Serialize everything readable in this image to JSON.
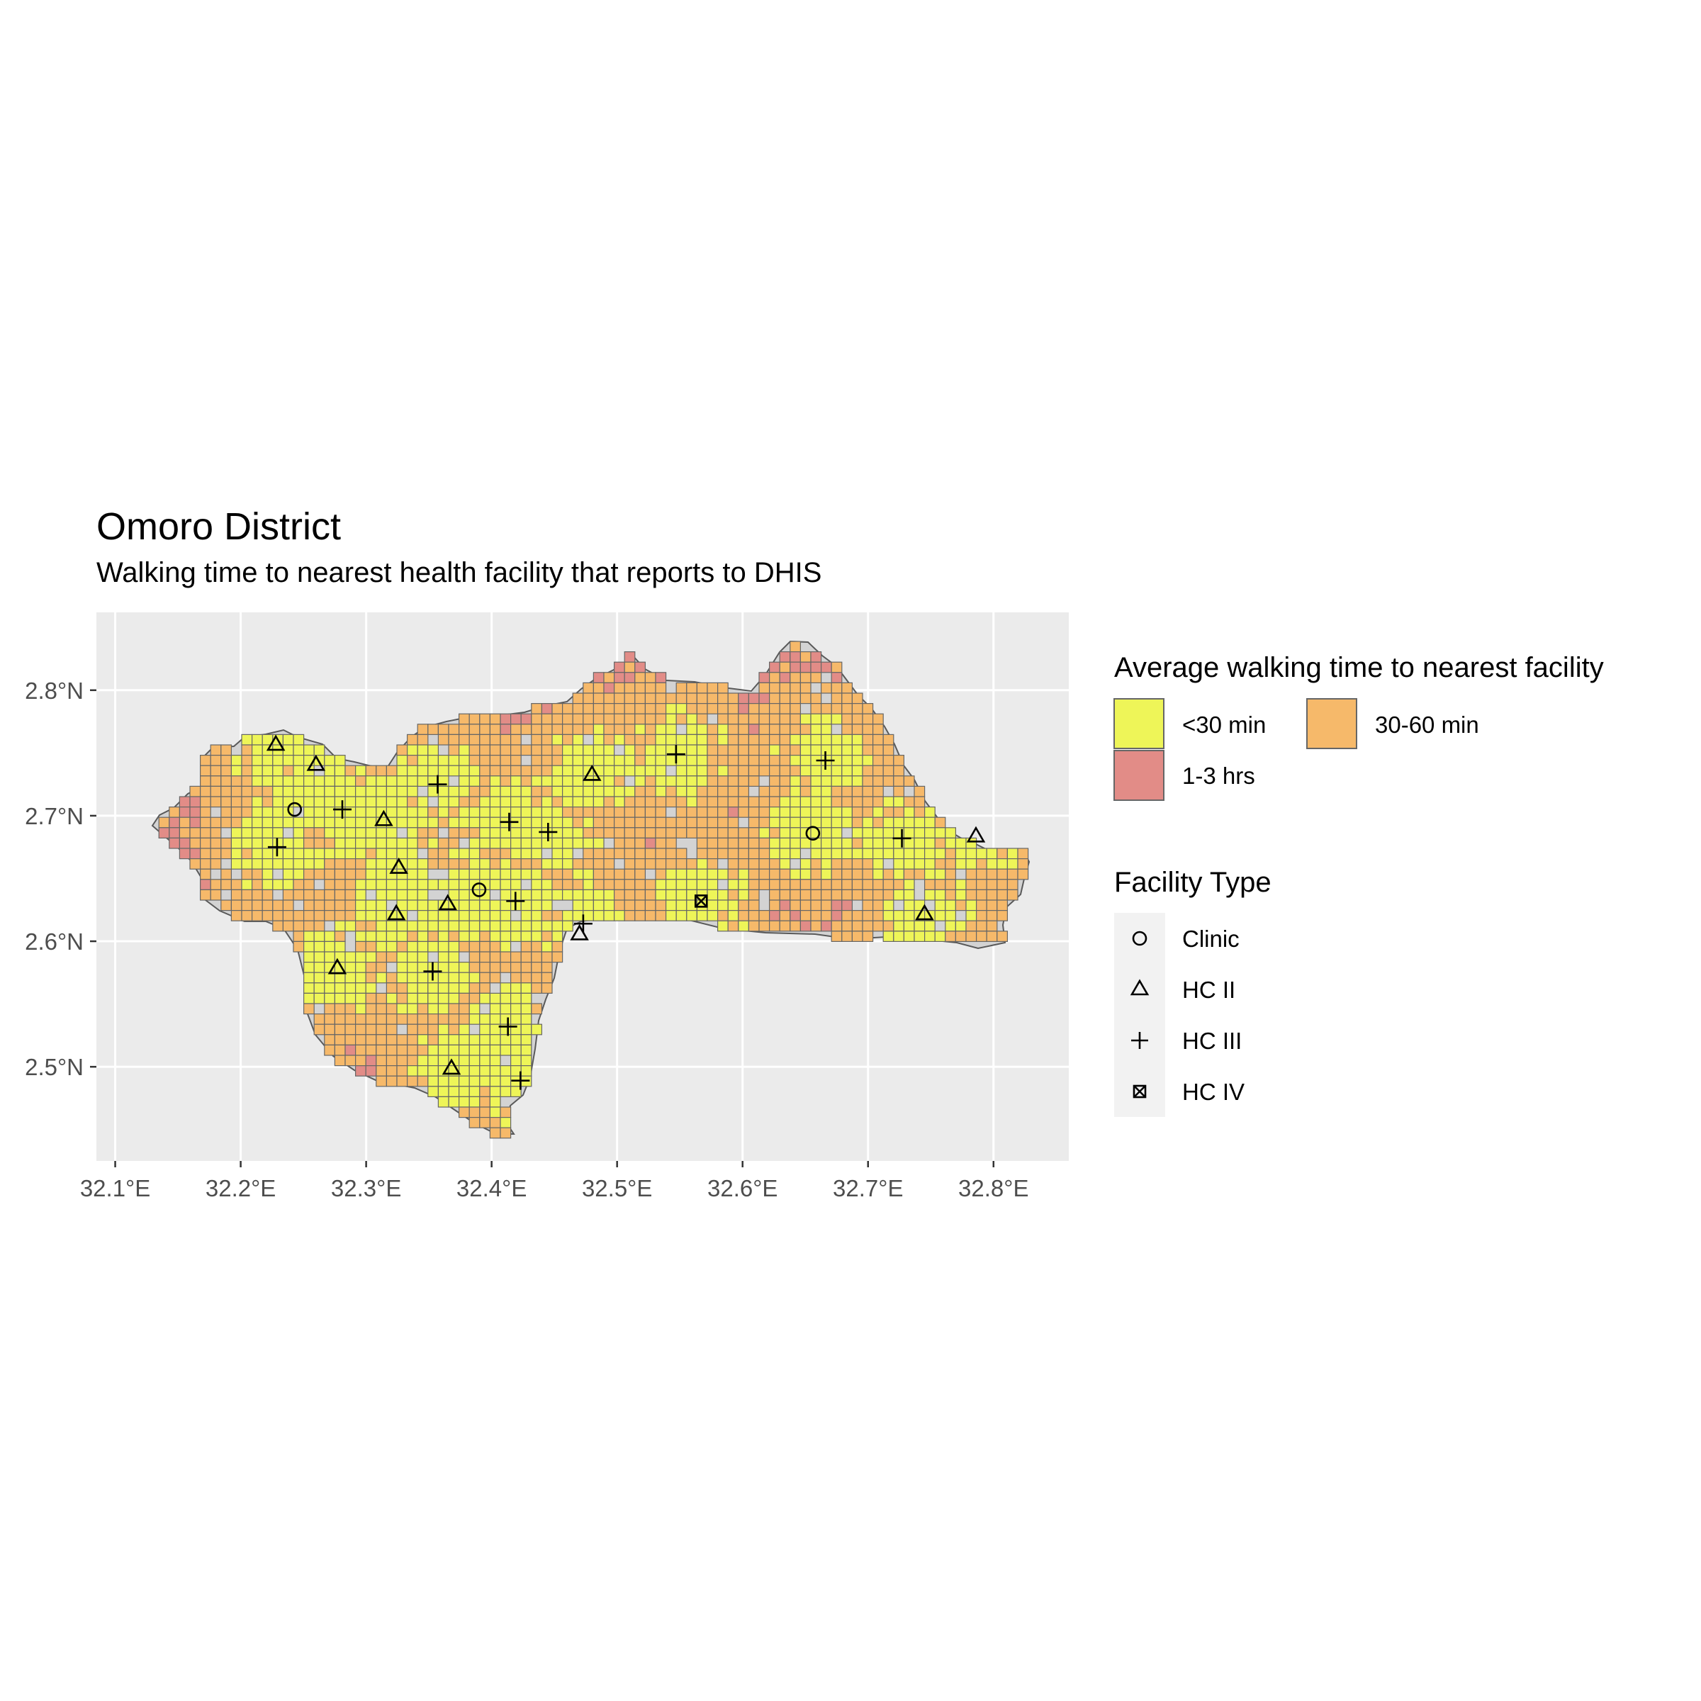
{
  "title": "Omoro District",
  "subtitle": "Walking time to nearest health facility that reports to DHIS",
  "chart_data": {
    "type": "map",
    "x_axis": {
      "range": [
        32.085,
        32.86
      ],
      "ticks": [
        32.1,
        32.2,
        32.3,
        32.4,
        32.5,
        32.6,
        32.7,
        32.8
      ],
      "tick_labels": [
        "32.1°E",
        "32.2°E",
        "32.3°E",
        "32.4°E",
        "32.5°E",
        "32.6°E",
        "32.7°E",
        "32.8°E"
      ]
    },
    "y_axis": {
      "range": [
        2.425,
        2.862
      ],
      "ticks": [
        2.5,
        2.6,
        2.7,
        2.8
      ],
      "tick_labels": [
        "2.5°N",
        "2.6°N",
        "2.7°N",
        "2.8°N"
      ]
    },
    "grid": true,
    "walking_time_legend": {
      "title": "Average walking time to nearest facility",
      "placement": "right",
      "items": [
        {
          "label": "<30 min",
          "color": "#EEF558"
        },
        {
          "label": "30-60 min",
          "color": "#F6B96A"
        },
        {
          "label": "1-3 hrs",
          "color": "#E28C87"
        }
      ]
    },
    "facility_legend": {
      "title": "Facility Type",
      "placement": "right",
      "items": [
        {
          "label": "Clinic",
          "shape": "circle"
        },
        {
          "label": "HC II",
          "shape": "triangle"
        },
        {
          "label": "HC III",
          "shape": "plus"
        },
        {
          "label": "HC IV",
          "shape": "square-x"
        }
      ]
    },
    "colors": {
      "panel_background": "#EBEBEB",
      "grid_line": "#FFFFFF",
      "district_fill": "#D3D3D3",
      "cell_border": "#666666"
    },
    "facilities": [
      {
        "type": "Clinic",
        "lon": 32.243,
        "lat": 2.705
      },
      {
        "type": "Clinic",
        "lon": 32.39,
        "lat": 2.641
      },
      {
        "type": "Clinic",
        "lon": 32.656,
        "lat": 2.686
      },
      {
        "type": "HC II",
        "lon": 32.228,
        "lat": 2.757
      },
      {
        "type": "HC II",
        "lon": 32.26,
        "lat": 2.741
      },
      {
        "type": "HC II",
        "lon": 32.314,
        "lat": 2.697
      },
      {
        "type": "HC II",
        "lon": 32.326,
        "lat": 2.659
      },
      {
        "type": "HC II",
        "lon": 32.324,
        "lat": 2.622
      },
      {
        "type": "HC II",
        "lon": 32.365,
        "lat": 2.63
      },
      {
        "type": "HC II",
        "lon": 32.277,
        "lat": 2.579
      },
      {
        "type": "HC II",
        "lon": 32.368,
        "lat": 2.499
      },
      {
        "type": "HC II",
        "lon": 32.48,
        "lat": 2.733
      },
      {
        "type": "HC II",
        "lon": 32.47,
        "lat": 2.606
      },
      {
        "type": "HC II",
        "lon": 32.745,
        "lat": 2.622
      },
      {
        "type": "HC II",
        "lon": 32.786,
        "lat": 2.684
      },
      {
        "type": "HC III",
        "lon": 32.229,
        "lat": 2.675
      },
      {
        "type": "HC III",
        "lon": 32.281,
        "lat": 2.705
      },
      {
        "type": "HC III",
        "lon": 32.357,
        "lat": 2.725
      },
      {
        "type": "HC III",
        "lon": 32.414,
        "lat": 2.695
      },
      {
        "type": "HC III",
        "lon": 32.445,
        "lat": 2.687
      },
      {
        "type": "HC III",
        "lon": 32.419,
        "lat": 2.632
      },
      {
        "type": "HC III",
        "lon": 32.473,
        "lat": 2.614
      },
      {
        "type": "HC III",
        "lon": 32.353,
        "lat": 2.576
      },
      {
        "type": "HC III",
        "lon": 32.413,
        "lat": 2.532
      },
      {
        "type": "HC III",
        "lon": 32.423,
        "lat": 2.489
      },
      {
        "type": "HC III",
        "lon": 32.547,
        "lat": 2.749
      },
      {
        "type": "HC III",
        "lon": 32.666,
        "lat": 2.744
      },
      {
        "type": "HC III",
        "lon": 32.727,
        "lat": 2.682
      },
      {
        "type": "HC IV",
        "lon": 32.567,
        "lat": 2.632
      }
    ]
  }
}
